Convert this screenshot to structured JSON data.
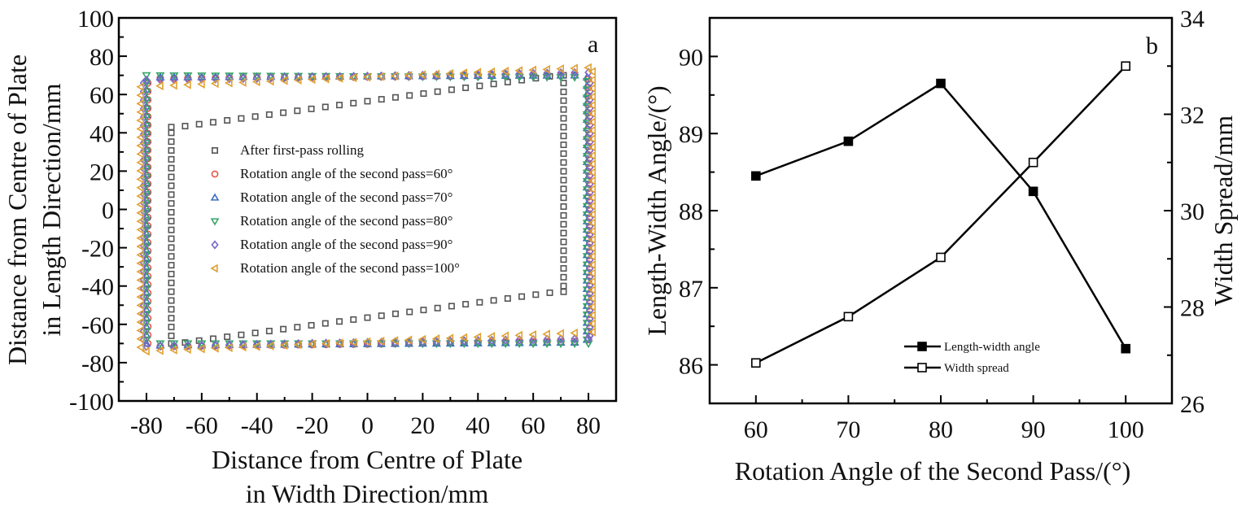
{
  "chart_data": [
    {
      "id": "a",
      "type": "scatter",
      "panel_label": "a",
      "xlabel_lines": [
        "Distance from Centre of Plate",
        "in Width Direction/mm"
      ],
      "ylabel_lines": [
        "Distance from Centre of Plate",
        "in Length Direction/mm"
      ],
      "xlim": [
        -90,
        90
      ],
      "ylim": [
        -100,
        100
      ],
      "xticks": [
        -80,
        -60,
        -40,
        -20,
        0,
        20,
        40,
        60,
        80
      ],
      "xtick_labels": [
        "-80",
        "-60",
        "-40",
        "-20",
        "0",
        "20",
        "40",
        "60",
        "80"
      ],
      "yticks": [
        -100,
        -80,
        -60,
        -40,
        -20,
        0,
        20,
        40,
        60,
        80,
        100
      ],
      "ytick_labels": [
        "-100",
        "-80",
        "-60",
        "-40",
        "-20",
        "0",
        "20",
        "40",
        "60",
        "80",
        "100"
      ],
      "grid": false,
      "legend_position": "center-left",
      "series": [
        {
          "name": "After first-pass rolling",
          "marker": "square",
          "color": "#555555",
          "outline": {
            "corners": [
              [
                -71,
                43
              ],
              [
                71,
                70
              ],
              [
                71,
                -43
              ],
              [
                -71,
                -70
              ]
            ],
            "top_edge": {
              "x_from": -66,
              "x_to": 66,
              "step": 5,
              "y_at_x_from": 43.5,
              "y_at_x_to": 69.5
            },
            "bottom_edge": {
              "x_from": -66,
              "x_to": 66,
              "step": 5,
              "y_at_x_from": -69.5,
              "y_at_x_to": -43.5
            },
            "right_edge": {
              "x": 71,
              "y_from": 66,
              "y_to": -40,
              "step": 4.6
            },
            "left_edge": {
              "x": -71,
              "y_from": 40,
              "y_to": -66,
              "step": 4.6
            }
          }
        },
        {
          "name": "Rotation angle of the second pass=60°",
          "marker": "circle",
          "color": "#e8564a",
          "outline": {
            "top_edge": {
              "x_from": -75,
              "x_to": 75,
              "step": 5,
              "y_at_x_from": 68.5,
              "y_at_x_to": 70
            },
            "bottom_edge": {
              "x_from": -75,
              "x_to": 75,
              "step": 5,
              "y_at_x_from": -71.5,
              "y_at_x_to": -69
            },
            "right_edge": {
              "x": 80,
              "y_from": 68,
              "y_to": -68,
              "step": 4.4
            },
            "left_edge": {
              "x": -79.5,
              "y_from": 66,
              "y_to": -70,
              "step": 4.4
            }
          }
        },
        {
          "name": "Rotation angle of the second pass=70°",
          "marker": "triangle-up",
          "color": "#3a6fc0",
          "outline": {
            "top_edge": {
              "x_from": -75,
              "x_to": 75,
              "step": 5,
              "y_at_x_from": 69,
              "y_at_x_to": 70
            },
            "bottom_edge": {
              "x_from": -75,
              "x_to": 75,
              "step": 5,
              "y_at_x_from": -71,
              "y_at_x_to": -69.5
            },
            "right_edge": {
              "x": 79.5,
              "y_from": 69,
              "y_to": -68,
              "step": 4.4
            },
            "left_edge": {
              "x": -80,
              "y_from": 67,
              "y_to": -70,
              "step": 4.4
            }
          }
        },
        {
          "name": "Rotation angle of the second pass=80°",
          "marker": "triangle-down",
          "color": "#3aa56a",
          "outline": {
            "top_edge": {
              "x_from": -80,
              "x_to": 75,
              "step": 5,
              "y_at_x_from": 70,
              "y_at_x_to": 69
            },
            "bottom_edge": {
              "x_from": -75,
              "x_to": 80,
              "step": 5,
              "y_at_x_from": -70,
              "y_at_x_to": -70
            },
            "right_edge": {
              "x": 79.5,
              "y_from": 67,
              "y_to": -68,
              "step": 4.4
            },
            "left_edge": {
              "x": -80,
              "y_from": 66,
              "y_to": -68,
              "step": 4.4
            }
          }
        },
        {
          "name": "Rotation angle of the second pass=90°",
          "marker": "diamond",
          "color": "#7b68c8",
          "outline": {
            "top_edge": {
              "x_from": -80,
              "x_to": 80,
              "step": 5,
              "y_at_x_from": 67.5,
              "y_at_x_to": 71.5
            },
            "bottom_edge": {
              "x_from": -80,
              "x_to": 80,
              "step": 5,
              "y_at_x_from": -71.5,
              "y_at_x_to": -67.5
            },
            "right_edge": {
              "x": 80.5,
              "y_from": 66,
              "y_to": -66,
              "step": 4.4
            },
            "left_edge": {
              "x": -81,
              "y_from": 66,
              "y_to": -68,
              "step": 4.4
            }
          }
        },
        {
          "name": "Rotation angle of the second pass=100°",
          "marker": "triangle-left",
          "color": "#e0a030",
          "outline": {
            "top_edge": {
              "x_from": -75,
              "x_to": 80,
              "step": 5,
              "y_at_x_from": 64.5,
              "y_at_x_to": 74
            },
            "bottom_edge": {
              "x_from": -80,
              "x_to": 75,
              "step": 5,
              "y_at_x_from": -74,
              "y_at_x_to": -64.5
            },
            "right_edge": {
              "x": 81.5,
              "y_from": 72,
              "y_to": -64,
              "step": 4.4
            },
            "left_edge": {
              "x": -82,
              "y_from": 64,
              "y_to": -72,
              "step": 4.4
            }
          }
        }
      ]
    },
    {
      "id": "b",
      "type": "line",
      "panel_label": "b",
      "xlabel": "Rotation Angle of the Second Pass/(°)",
      "ylabel": "Length-Width Angle/(°)",
      "ylabel_right": "Width Spread/mm",
      "x": [
        60,
        70,
        80,
        90,
        100
      ],
      "xlim": [
        55,
        105
      ],
      "ylim": [
        85.5,
        90.5
      ],
      "ylim_right": [
        26,
        34
      ],
      "xticks": [
        60,
        70,
        80,
        90,
        100
      ],
      "xtick_labels": [
        "60",
        "70",
        "80",
        "90",
        "100"
      ],
      "yticks": [
        86,
        87,
        88,
        89,
        90
      ],
      "ytick_labels": [
        "86",
        "87",
        "88",
        "89",
        "90"
      ],
      "yticks_right": [
        26,
        28,
        30,
        32,
        34
      ],
      "ytick_labels_right": [
        "26",
        "28",
        "30",
        "32",
        "34"
      ],
      "grid": false,
      "legend_position": "bottom-center",
      "series": [
        {
          "name": "Length-width angle",
          "axis": "left",
          "marker": "filled-square",
          "values": [
            88.45,
            88.9,
            89.65,
            88.25,
            86.21
          ]
        },
        {
          "name": "Width spread",
          "axis": "right",
          "marker": "open-square",
          "values": [
            26.84,
            27.8,
            29.03,
            31.0,
            33.0
          ]
        }
      ]
    }
  ]
}
